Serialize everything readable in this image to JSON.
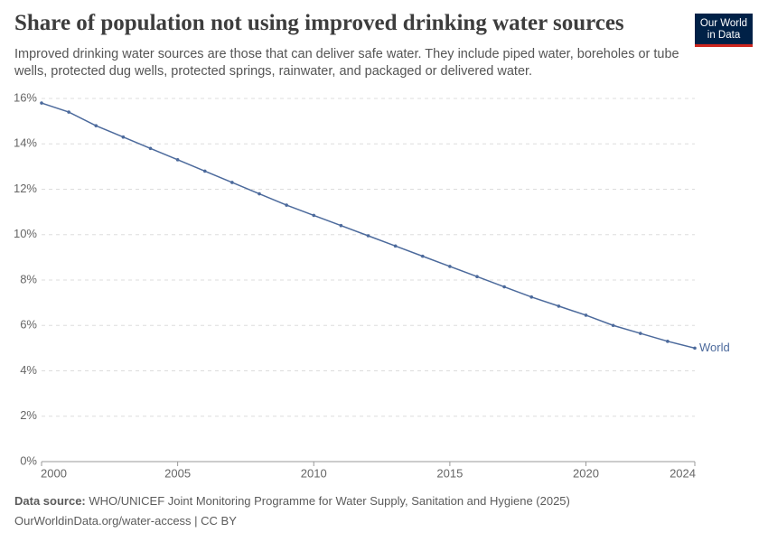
{
  "chart_data": {
    "type": "line",
    "title": "Share of population not using improved drinking water sources",
    "subtitle": "Improved drinking water sources are those that can deliver safe water. They include piped water, boreholes or tube wells, protected dug wells, protected springs, rainwater, and packaged or delivered water.",
    "x": [
      2000,
      2001,
      2002,
      2003,
      2004,
      2005,
      2006,
      2007,
      2008,
      2009,
      2010,
      2011,
      2012,
      2013,
      2014,
      2015,
      2016,
      2017,
      2018,
      2019,
      2020,
      2021,
      2022,
      2023,
      2024
    ],
    "series": [
      {
        "name": "World",
        "color": "#4c6a9c",
        "values": [
          15.8,
          15.4,
          14.8,
          14.3,
          13.8,
          13.3,
          12.8,
          12.3,
          11.8,
          11.3,
          10.85,
          10.4,
          9.95,
          9.5,
          9.05,
          8.6,
          8.15,
          7.7,
          7.25,
          6.85,
          6.45,
          6.0,
          5.65,
          5.3,
          5.0
        ]
      }
    ],
    "xlim": [
      2000,
      2024
    ],
    "xticks": [
      2000,
      2005,
      2010,
      2015,
      2020,
      2024
    ],
    "ylim": [
      0,
      16
    ],
    "yticks": [
      {
        "value": 0,
        "label": "0%"
      },
      {
        "value": 2,
        "label": "2%"
      },
      {
        "value": 4,
        "label": "4%"
      },
      {
        "value": 6,
        "label": "6%"
      },
      {
        "value": 8,
        "label": "8%"
      },
      {
        "value": 10,
        "label": "10%"
      },
      {
        "value": 12,
        "label": "12%"
      },
      {
        "value": 14,
        "label": "14%"
      },
      {
        "value": 16,
        "label": "16%"
      }
    ],
    "grid": true,
    "source_label": "Data source:",
    "source": "WHO/UNICEF Joint Monitoring Programme for Water Supply, Sanitation and Hygiene (2025)",
    "footer": "OurWorldinData.org/water-access | CC BY"
  },
  "logo": [
    "Our World",
    "in Data"
  ]
}
